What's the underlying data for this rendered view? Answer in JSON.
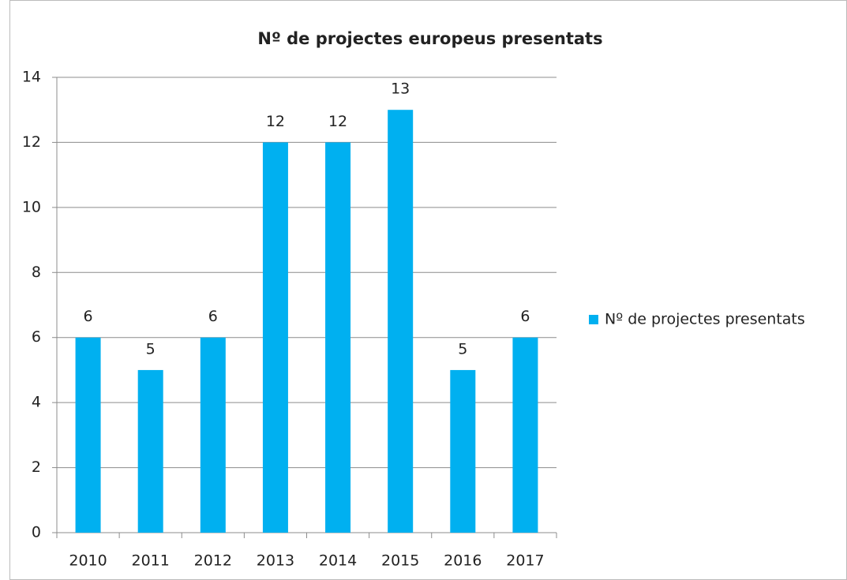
{
  "chart_data": {
    "type": "bar",
    "title": "Nº de projectes europeus presentats",
    "categories": [
      "2010",
      "2011",
      "2012",
      "2013",
      "2014",
      "2015",
      "2016",
      "2017"
    ],
    "series": [
      {
        "name": "Nº de projectes presentats",
        "color": "#00b0f0",
        "values": [
          6,
          5,
          6,
          12,
          12,
          13,
          5,
          6
        ]
      }
    ],
    "ylim": [
      0,
      14
    ],
    "yticks": [
      0,
      2,
      4,
      6,
      8,
      10,
      12,
      14
    ],
    "grid": true,
    "legend": "right",
    "data_labels": true
  }
}
